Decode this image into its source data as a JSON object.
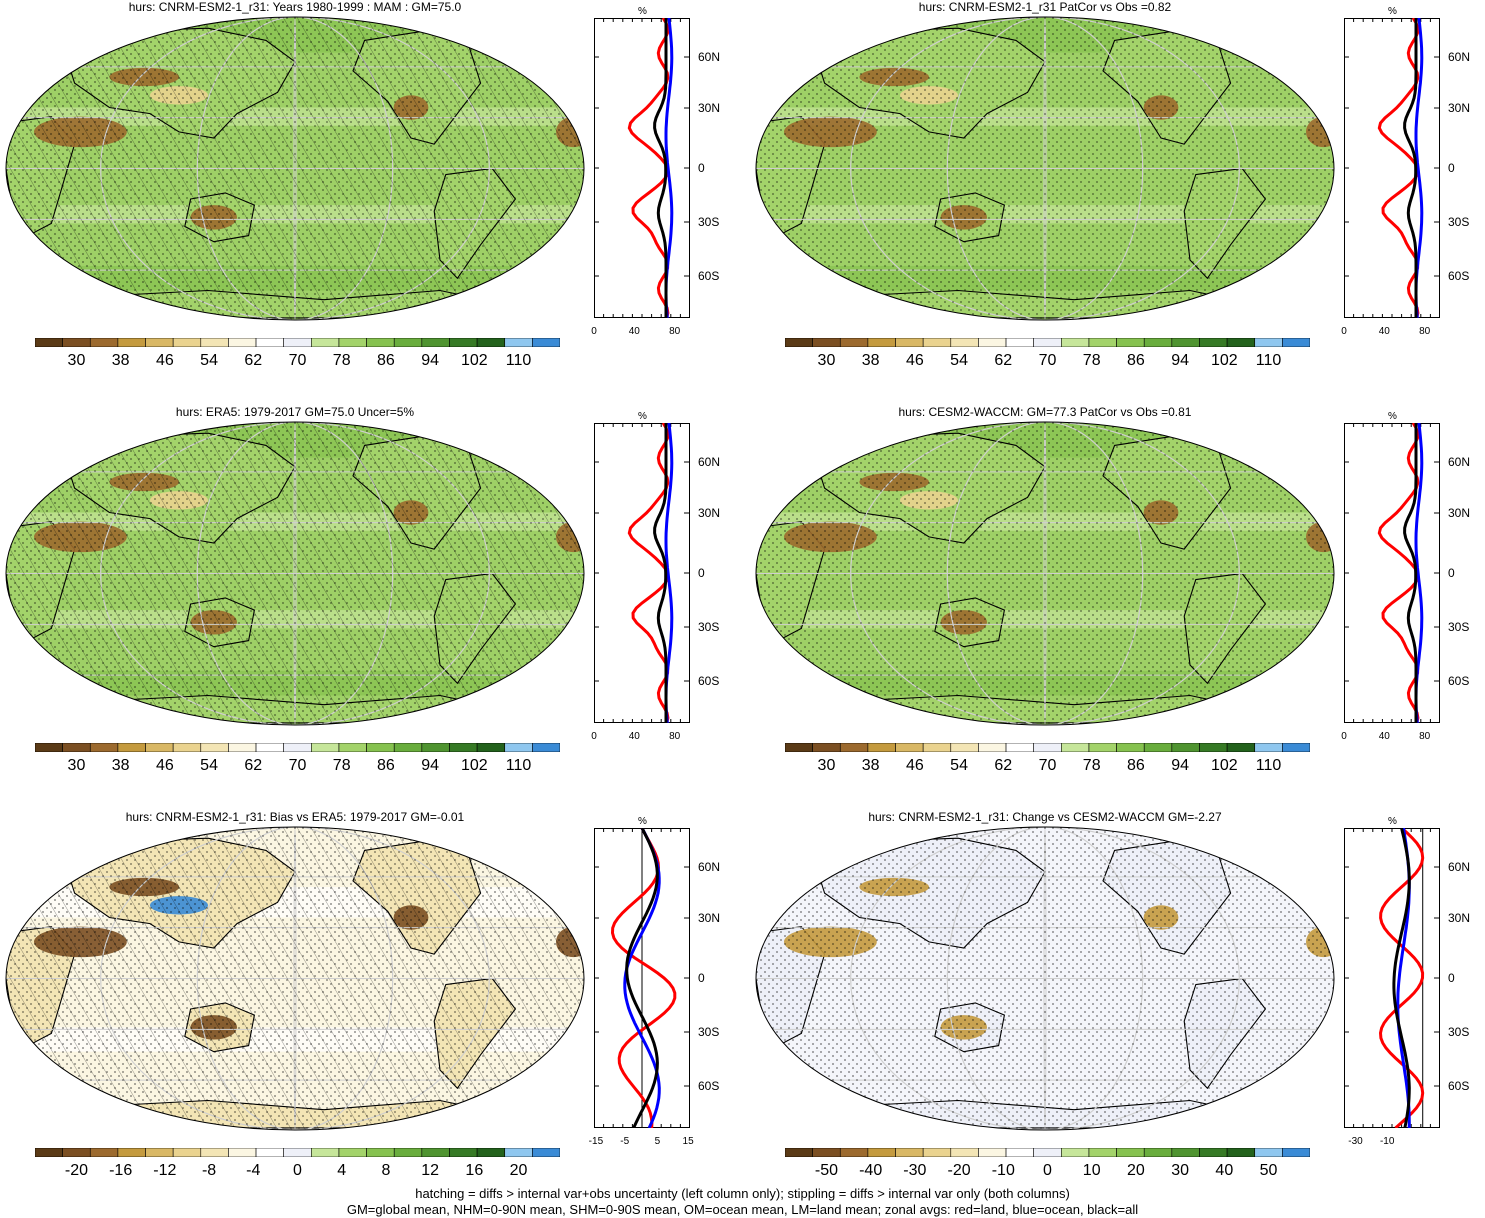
{
  "panels": [
    {
      "id": "p1",
      "title": "hurs: CNRM-ESM2-1_r31: Years 1980-1999 : MAM : GM=75.0",
      "scale": "abs",
      "hatch": "diag-stip",
      "zonal_xticks": [
        "0",
        "40",
        "80"
      ],
      "zonal_unit": "%"
    },
    {
      "id": "p2",
      "title": "hurs: CNRM-ESM2-1_r31 PatCor vs Obs =0.82",
      "scale": "abs",
      "hatch": "stip",
      "zonal_xticks": [
        "0",
        "40",
        "80"
      ],
      "zonal_unit": "%"
    },
    {
      "id": "p3",
      "title": "hurs: ERA5: 1979-2017 GM=75.0 Uncer=5%",
      "scale": "abs",
      "hatch": "diag-stip",
      "zonal_xticks": [
        "0",
        "40",
        "80"
      ],
      "zonal_unit": "%"
    },
    {
      "id": "p4",
      "title": "hurs: CESM2-WACCM: GM=77.3 PatCor vs Obs =0.81",
      "scale": "abs",
      "hatch": "stip",
      "zonal_xticks": [
        "0",
        "40",
        "80"
      ],
      "zonal_unit": "%"
    },
    {
      "id": "p5",
      "title": "hurs: CNRM-ESM2-1_r31: Bias vs ERA5: 1979-2017 GM=-0.01",
      "scale": "bias",
      "hatch": "diag-stip",
      "zonal_xticks": [
        "-15",
        "-5",
        "5",
        "15"
      ],
      "zonal_unit": "%"
    },
    {
      "id": "p6",
      "title": "hurs: CNRM-ESM2-1_r31: Change vs CESM2-WACCM GM=-2.27",
      "scale": "change",
      "hatch": "stip",
      "zonal_xticks": [
        "-30",
        "-10"
      ],
      "zonal_unit": "%"
    }
  ],
  "lat_labels": [
    "60N",
    "30N",
    "0",
    "30S",
    "60S"
  ],
  "colorbars": {
    "abs": [
      "30",
      "38",
      "46",
      "54",
      "62",
      "70",
      "78",
      "86",
      "94",
      "102",
      "110"
    ],
    "bias": [
      "-20",
      "-16",
      "-12",
      "-8",
      "-4",
      "0",
      "4",
      "8",
      "12",
      "16",
      "20"
    ],
    "change": [
      "-50",
      "-40",
      "-30",
      "-20",
      "-10",
      "0",
      "10",
      "20",
      "30",
      "40",
      "50"
    ]
  },
  "palette": [
    "#5a3a16",
    "#7b4f22",
    "#9c6a2e",
    "#c49a3e",
    "#d9b865",
    "#ead38f",
    "#f3e5b5",
    "#fbf6e2",
    "#ffffff",
    "#eef0f8",
    "#c6e69a",
    "#a3d36a",
    "#86c24f",
    "#69ad3d",
    "#4f9430",
    "#367a25",
    "#23621c",
    "#8fc7ef",
    "#3a8bd6"
  ],
  "zonal_legend": {
    "land": "#ff0000",
    "ocean": "#0000ff",
    "all": "#000000"
  },
  "footer": {
    "line1": "hatching = diffs > internal var+obs uncertainty (left column only); stippling = diffs > internal var only (both columns)",
    "line2": "GM=global mean, NHM=0-90N mean, SHM=0-90S mean, OM=ocean mean, LM=land mean; zonal avgs: red=land, blue=ocean, black=all"
  }
}
